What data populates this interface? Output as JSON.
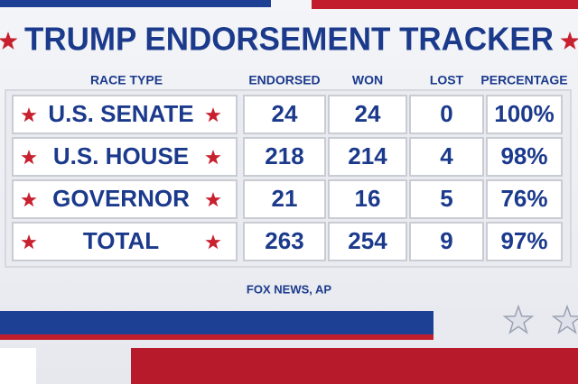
{
  "title": "TRUMP ENDORSEMENT TRACKER",
  "table": {
    "columns": [
      "RACE TYPE",
      "ENDORSED",
      "WON",
      "LOST",
      "PERCENTAGE"
    ],
    "rows": [
      [
        "U.S. SENATE",
        "24",
        "24",
        "0",
        "100%"
      ],
      [
        "U.S. HOUSE",
        "218",
        "214",
        "4",
        "98%"
      ],
      [
        "GOVERNOR",
        "21",
        "16",
        "5",
        "76%"
      ],
      [
        "TOTAL",
        "263",
        "254",
        "9",
        "97%"
      ]
    ]
  },
  "source": "FOX NEWS, AP"
}
